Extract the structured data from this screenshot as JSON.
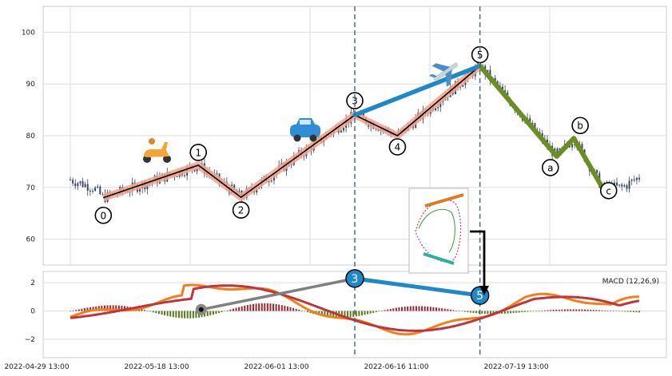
{
  "chart_data": [
    {
      "type": "candlestick",
      "panel": "price",
      "ylim": [
        55,
        105
      ],
      "yticks": [
        60,
        70,
        80,
        90,
        100
      ],
      "grid": true,
      "x_tick_labels": [
        "2022-04-29 13:00",
        "2022-05-18 13:00",
        "2022-06-01 13:00",
        "2022-06-16 11:00",
        "2022-07-19 13:00"
      ],
      "wave_points": [
        {
          "label": "0",
          "x": 0.058,
          "y": 68
        },
        {
          "label": "1",
          "x": 0.225,
          "y": 74.3
        },
        {
          "label": "2",
          "x": 0.3,
          "y": 68.1
        },
        {
          "label": "3",
          "x": 0.5,
          "y": 84
        },
        {
          "label": "4",
          "x": 0.575,
          "y": 80
        },
        {
          "label": "5",
          "x": 0.72,
          "y": 93.5
        },
        {
          "label": "a",
          "x": 0.855,
          "y": 76
        },
        {
          "label": "b",
          "x": 0.885,
          "y": 79.5
        },
        {
          "label": "c",
          "x": 0.935,
          "y": 70
        }
      ],
      "vertical_markers_x": [
        0.5,
        0.72
      ],
      "colors": {
        "candle": "#3a4866",
        "wave_shadow": "#f2a48c",
        "wave_line": "#000000",
        "impulse_extension": "#1e88c8",
        "correction": "#6b8e23",
        "marker": "#4a5f80"
      }
    },
    {
      "type": "macd",
      "panel": "indicator",
      "title": "MACD (12,26,9)",
      "ylim": [
        -3.3,
        2.8
      ],
      "yticks": [
        -2,
        0,
        2
      ],
      "highlight_points": [
        {
          "label": "3",
          "x": 0.5,
          "y": 2.3
        },
        {
          "label": "5",
          "x": 0.72,
          "y": 1.1
        }
      ],
      "start_marker": {
        "x": 0.23,
        "y": 0.1
      },
      "colors": {
        "macd": "#f57f17",
        "signal": "#c0343c",
        "hist_pos": "#9c2a30",
        "hist_neg": "#5a7a1a",
        "highlight": "#1e88c8",
        "connector": "#808080"
      }
    }
  ],
  "icons": [
    "scooter-icon",
    "car-icon",
    "airplane-icon",
    "wave-diagram-icon"
  ]
}
